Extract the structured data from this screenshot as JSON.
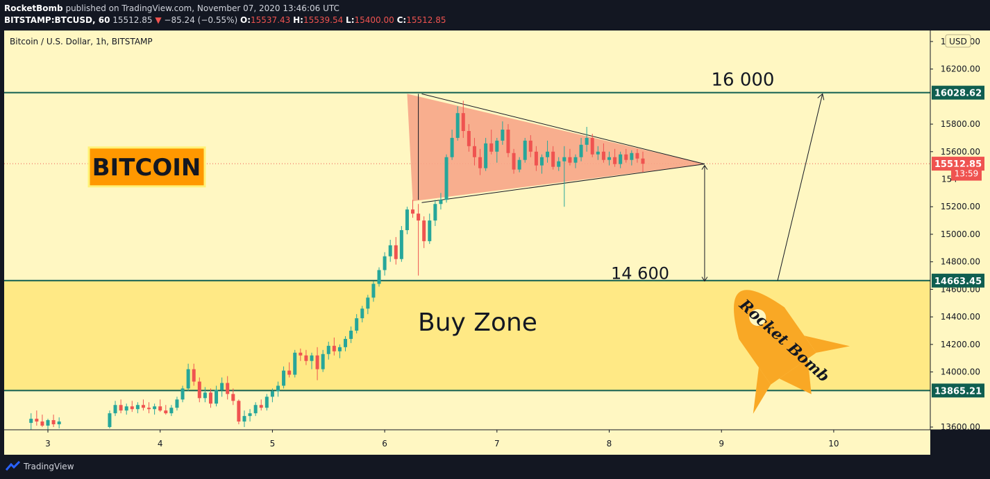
{
  "header": {
    "publisher": "RocketBomb",
    "published_text": "published on TradingView.com, November 07, 2020 13:46:06 UTC",
    "symbol": "BITSTAMP:BTCUSD, 60",
    "last": "15512.85",
    "change_arrow": "▼",
    "change": "−85.24 (−0.55%)",
    "o_label": "O:",
    "o": "15537.43",
    "h_label": "H:",
    "h": "15539.54",
    "l_label": "L:",
    "l": "15400.00",
    "c_label": "C:",
    "c": "15512.85"
  },
  "chart_data": {
    "type": "candlestick",
    "title": "Bitcoin / U.S. Dollar, 1h, BITSTAMP",
    "currency": "USD",
    "x_ticks": [
      "3",
      "4",
      "5",
      "6",
      "7",
      "8",
      "9",
      "10"
    ],
    "y_ticks": [
      "16400.00",
      "16200.00",
      "15800.00",
      "15600.00",
      "15200.00",
      "15000.00",
      "14800.00",
      "14600.00",
      "14400.00",
      "14200.00",
      "14000.00",
      "13600.00"
    ],
    "ylim": [
      13580,
      16480
    ],
    "xlim": [
      2.85,
      10.7
    ],
    "price_labels": [
      {
        "value": 16028.62,
        "text": "16028.62",
        "style": "horizontal-line"
      },
      {
        "value": 15512.85,
        "text": "15512.85",
        "style": "last-price"
      },
      {
        "value": 15440,
        "text": "13:59",
        "style": "countdown"
      },
      {
        "value": 14663.45,
        "text": "14663.45",
        "style": "horizontal-line"
      },
      {
        "value": 13865.21,
        "text": "13865.21",
        "style": "horizontal-line"
      }
    ],
    "partial_tick": "154",
    "buy_zone": {
      "from": 13865.21,
      "to": 14663.45,
      "label": "Buy Zone"
    },
    "annotations": {
      "badge": "BITCOIN",
      "target_text": "16 000",
      "height_text": "14 600",
      "rocket_text": "Rocket Bomb"
    },
    "candles": [
      [
        2.85,
        13630,
        13700,
        13580,
        13660
      ],
      [
        2.9,
        13660,
        13720,
        13610,
        13640
      ],
      [
        2.95,
        13640,
        13690,
        13600,
        13610
      ],
      [
        3.0,
        13610,
        13660,
        13580,
        13650
      ],
      [
        3.05,
        13650,
        13690,
        13600,
        13620
      ],
      [
        3.1,
        13620,
        13670,
        13590,
        13640
      ],
      [
        3.55,
        13600,
        13720,
        13590,
        13700
      ],
      [
        3.6,
        13700,
        13790,
        13680,
        13760
      ],
      [
        3.65,
        13760,
        13800,
        13700,
        13720
      ],
      [
        3.7,
        13720,
        13770,
        13690,
        13750
      ],
      [
        3.75,
        13750,
        13790,
        13710,
        13730
      ],
      [
        3.8,
        13730,
        13780,
        13700,
        13760
      ],
      [
        3.85,
        13760,
        13800,
        13720,
        13740
      ],
      [
        3.9,
        13740,
        13780,
        13700,
        13730
      ],
      [
        3.95,
        13730,
        13770,
        13690,
        13750
      ],
      [
        4.0,
        13750,
        13800,
        13710,
        13720
      ],
      [
        4.05,
        13720,
        13760,
        13690,
        13700
      ],
      [
        4.1,
        13700,
        13760,
        13680,
        13740
      ],
      [
        4.15,
        13740,
        13820,
        13720,
        13800
      ],
      [
        4.2,
        13800,
        13900,
        13780,
        13880
      ],
      [
        4.25,
        13880,
        14060,
        13860,
        14020
      ],
      [
        4.3,
        14020,
        14060,
        13900,
        13930
      ],
      [
        4.35,
        13930,
        13960,
        13780,
        13810
      ],
      [
        4.4,
        13810,
        13890,
        13780,
        13850
      ],
      [
        4.45,
        13850,
        13880,
        13740,
        13770
      ],
      [
        4.5,
        13770,
        13900,
        13750,
        13870
      ],
      [
        4.55,
        13870,
        13960,
        13820,
        13920
      ],
      [
        4.6,
        13920,
        13970,
        13800,
        13840
      ],
      [
        4.65,
        13840,
        13880,
        13760,
        13790
      ],
      [
        4.7,
        13790,
        13800,
        13620,
        13640
      ],
      [
        4.75,
        13640,
        13720,
        13600,
        13680
      ],
      [
        4.8,
        13680,
        13730,
        13640,
        13700
      ],
      [
        4.85,
        13700,
        13780,
        13680,
        13760
      ],
      [
        4.9,
        13760,
        13800,
        13720,
        13740
      ],
      [
        4.95,
        13740,
        13840,
        13720,
        13820
      ],
      [
        5.0,
        13820,
        13880,
        13780,
        13860
      ],
      [
        5.05,
        13860,
        13930,
        13820,
        13900
      ],
      [
        5.1,
        13900,
        14040,
        13880,
        14010
      ],
      [
        5.15,
        14010,
        14070,
        13960,
        13980
      ],
      [
        5.2,
        13980,
        14160,
        13960,
        14140
      ],
      [
        5.25,
        14140,
        14170,
        14080,
        14120
      ],
      [
        5.3,
        14120,
        14160,
        14050,
        14080
      ],
      [
        5.35,
        14080,
        14140,
        14020,
        14120
      ],
      [
        5.4,
        14120,
        14180,
        13940,
        14020
      ],
      [
        5.45,
        14020,
        14160,
        14000,
        14130
      ],
      [
        5.5,
        14130,
        14220,
        14090,
        14190
      ],
      [
        5.55,
        14190,
        14250,
        14120,
        14150
      ],
      [
        5.6,
        14150,
        14200,
        14100,
        14180
      ],
      [
        5.65,
        14180,
        14260,
        14150,
        14240
      ],
      [
        5.7,
        14240,
        14330,
        14210,
        14300
      ],
      [
        5.75,
        14300,
        14420,
        14280,
        14390
      ],
      [
        5.8,
        14390,
        14480,
        14360,
        14460
      ],
      [
        5.85,
        14460,
        14560,
        14420,
        14540
      ],
      [
        5.9,
        14540,
        14660,
        14510,
        14640
      ],
      [
        5.95,
        14640,
        14760,
        14620,
        14740
      ],
      [
        6.0,
        14740,
        14870,
        14700,
        14840
      ],
      [
        6.05,
        14840,
        14960,
        14800,
        14920
      ],
      [
        6.1,
        14920,
        14980,
        14780,
        14820
      ],
      [
        6.15,
        14820,
        15060,
        14800,
        15030
      ],
      [
        6.2,
        15030,
        15200,
        15000,
        15180
      ],
      [
        6.25,
        15180,
        15250,
        15120,
        15150
      ],
      [
        6.3,
        15150,
        15220,
        14700,
        15100
      ],
      [
        6.35,
        15100,
        15130,
        14900,
        14950
      ],
      [
        6.4,
        14950,
        15150,
        14930,
        15100
      ],
      [
        6.45,
        15100,
        15250,
        15060,
        15220
      ],
      [
        6.5,
        15220,
        15300,
        15180,
        15250
      ]
    ],
    "candles_right": [
      [
        6.55,
        15250,
        15580,
        15230,
        15560
      ],
      [
        6.6,
        15560,
        15760,
        15540,
        15700
      ],
      [
        6.65,
        15700,
        15930,
        15680,
        15880
      ],
      [
        6.7,
        15880,
        15970,
        15700,
        15750
      ],
      [
        6.75,
        15750,
        15800,
        15600,
        15640
      ],
      [
        6.8,
        15640,
        15700,
        15500,
        15560
      ],
      [
        6.85,
        15560,
        15620,
        15430,
        15480
      ],
      [
        6.9,
        15480,
        15700,
        15460,
        15660
      ],
      [
        6.95,
        15660,
        15760,
        15580,
        15600
      ],
      [
        7.0,
        15600,
        15700,
        15520,
        15680
      ],
      [
        7.05,
        15680,
        15820,
        15650,
        15760
      ],
      [
        7.1,
        15760,
        15800,
        15560,
        15590
      ],
      [
        7.15,
        15590,
        15620,
        15440,
        15470
      ],
      [
        7.2,
        15470,
        15560,
        15450,
        15540
      ],
      [
        7.25,
        15540,
        15700,
        15520,
        15680
      ],
      [
        7.3,
        15680,
        15720,
        15560,
        15600
      ],
      [
        7.35,
        15600,
        15640,
        15460,
        15500
      ],
      [
        7.4,
        15500,
        15580,
        15440,
        15560
      ],
      [
        7.45,
        15560,
        15680,
        15520,
        15600
      ],
      [
        7.5,
        15600,
        15640,
        15470,
        15490
      ],
      [
        7.55,
        15490,
        15560,
        15460,
        15530
      ],
      [
        7.6,
        15530,
        15640,
        15200,
        15560
      ],
      [
        7.65,
        15560,
        15620,
        15500,
        15520
      ],
      [
        7.7,
        15520,
        15580,
        15480,
        15560
      ],
      [
        7.75,
        15560,
        15700,
        15530,
        15650
      ],
      [
        7.8,
        15650,
        15780,
        15600,
        15700
      ],
      [
        7.85,
        15700,
        15730,
        15560,
        15580
      ],
      [
        7.9,
        15580,
        15640,
        15540,
        15600
      ],
      [
        7.95,
        15600,
        15660,
        15520,
        15540
      ],
      [
        8.0,
        15540,
        15600,
        15500,
        15560
      ],
      [
        8.05,
        15560,
        15620,
        15490,
        15510
      ],
      [
        8.1,
        15510,
        15600,
        15480,
        15580
      ],
      [
        8.15,
        15580,
        15620,
        15520,
        15540
      ],
      [
        8.2,
        15540,
        15610,
        15500,
        15590
      ],
      [
        8.25,
        15590,
        15620,
        15520,
        15550
      ],
      [
        8.3,
        15550,
        15600,
        15450,
        15512
      ]
    ]
  },
  "footer": {
    "brand": "TradingView"
  }
}
